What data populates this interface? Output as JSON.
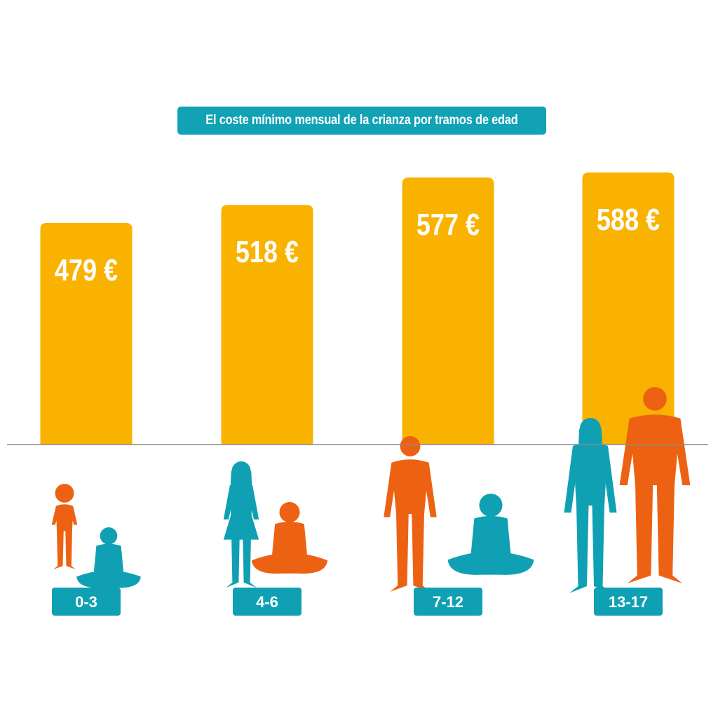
{
  "colors": {
    "bar": "#f9b200",
    "teal": "#0fa0b3",
    "orange": "#ec6212",
    "baseline": "#8a8a8a",
    "label_text": "#ffffff"
  },
  "chart_data": {
    "type": "bar",
    "title": "El coste mínimo mensual de la crianza por tramos de edad",
    "categories": [
      "0-3",
      "4-6",
      "7-12",
      "13-17"
    ],
    "values": [
      479,
      518,
      577,
      588
    ],
    "value_labels": [
      "479 €",
      "518 €",
      "577 €",
      "588 €"
    ],
    "unit": "€",
    "xlabel": "",
    "ylabel": "",
    "ylim": [
      0,
      620
    ],
    "grid": false,
    "legend": "none"
  },
  "icons": [
    "child-silhouettes-icon"
  ]
}
